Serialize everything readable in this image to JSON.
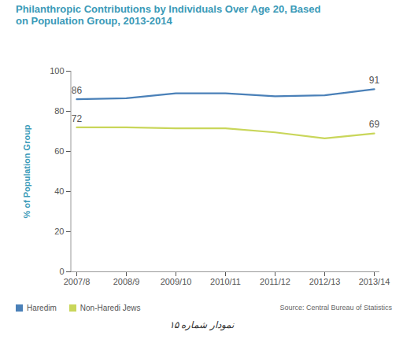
{
  "chart_data": {
    "type": "line",
    "title": "Philanthropic Contributions by Individuals Over Age 20, Based on Population Group, 2013-2014",
    "ylabel": "% of Population Group",
    "categories": [
      "2007/8",
      "2008/9",
      "2009/10",
      "2010/11",
      "2011/12",
      "2012/13",
      "2013/14"
    ],
    "series": [
      {
        "name": "Haredim",
        "color": "#4a80b8",
        "values": [
          86,
          86.5,
          89,
          89,
          87.5,
          88,
          91
        ],
        "value_labels": [
          "86",
          null,
          null,
          null,
          null,
          null,
          "91"
        ]
      },
      {
        "name": "Non-Haredi Jews",
        "color": "#c9d65a",
        "values": [
          72,
          72,
          71.5,
          71.5,
          69.5,
          66.5,
          69
        ],
        "value_labels": [
          "72",
          null,
          null,
          null,
          null,
          null,
          "69"
        ]
      }
    ],
    "ylim": [
      0,
      100
    ],
    "yticks": [
      0,
      20,
      40,
      60,
      80,
      100
    ],
    "grid": false,
    "legend": "bottom left",
    "source": "Source: Central Bureau of Statistics",
    "caption": "نمودار شماره ۱۵"
  }
}
